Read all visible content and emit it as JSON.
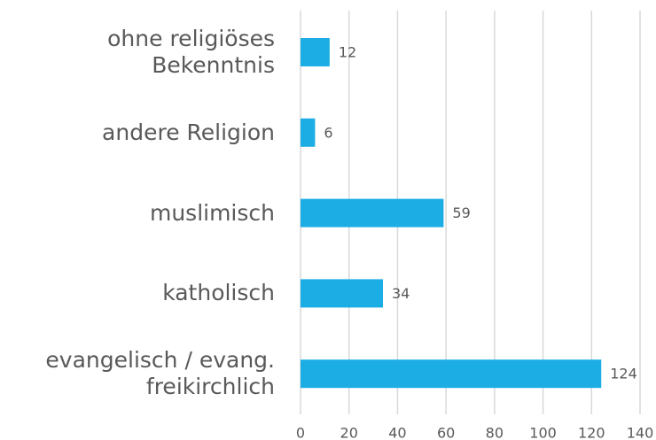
{
  "chart_data": {
    "type": "bar",
    "orientation": "horizontal",
    "categories": [
      "ohne religiöses Bekenntnis",
      "andere Religion",
      "muslimisch",
      "katholisch",
      "evangelisch / evang. freikirchlich"
    ],
    "values": [
      12,
      6,
      59,
      34,
      124
    ],
    "color": "#1cade4",
    "xlim": [
      0,
      140
    ],
    "xticks": [
      0,
      20,
      40,
      60,
      80,
      100,
      120,
      140
    ],
    "grid": true
  }
}
